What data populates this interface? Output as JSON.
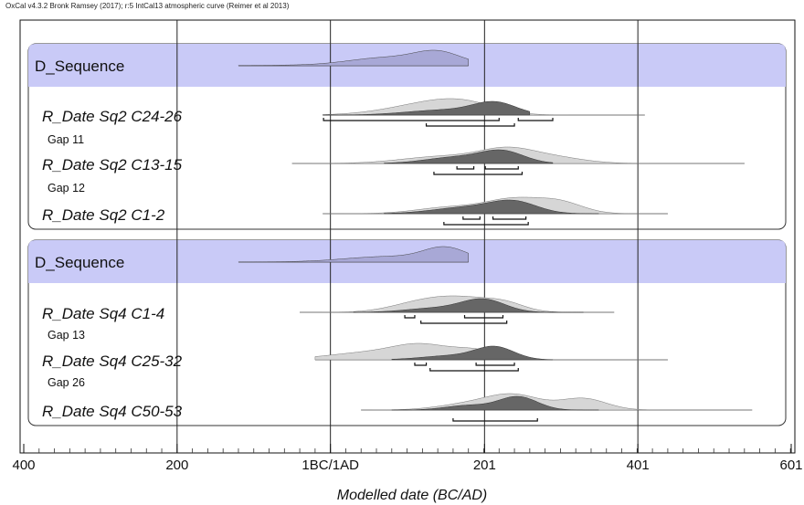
{
  "chart_data": {
    "type": "area",
    "credit": "OxCal v4.3.2 Bronk Ramsey (2017); r:5 IntCal13 atmospheric curve (Reimer et al 2013)",
    "xlabel": "Modelled date (BC/AD)",
    "xlim": [
      -400,
      601
    ],
    "x_ticks": [
      {
        "value": -400,
        "label": "400"
      },
      {
        "value": -200,
        "label": "200"
      },
      {
        "value": 0,
        "label": "1BC/1AD"
      },
      {
        "value": 201,
        "label": "201"
      },
      {
        "value": 401,
        "label": "401"
      },
      {
        "value": 601,
        "label": "601"
      }
    ],
    "colors": {
      "sequence_band": "#c9caf7",
      "prior": "#d6d6d6",
      "posterior": "#666666",
      "sequence_curve": "#a8a8d6"
    },
    "groups": [
      {
        "label": "D_Sequence",
        "summary": {
          "range": [
            -120,
            180
          ],
          "peaks": [
            {
              "center": 140,
              "width": 30,
              "height": 1.0
            },
            {
              "center": 70,
              "width": 45,
              "height": 0.55
            },
            {
              "center": 120,
              "width": 120,
              "height": 0.15
            }
          ]
        },
        "items": [
          {
            "label": "R_Date Sq2 C24-26",
            "prior": {
              "range": [
                -10,
                410
              ],
              "peaks": [
                {
                  "center": 180,
                  "width": 40,
                  "height": 1.0
                },
                {
                  "center": 140,
                  "width": 45,
                  "height": 0.8
                },
                {
                  "center": 100,
                  "width": 50,
                  "height": 0.55
                }
              ]
            },
            "posterior": {
              "range": [
                -10,
                260
              ],
              "peaks": [
                {
                  "center": 215,
                  "width": 28,
                  "height": 1.0
                },
                {
                  "center": 150,
                  "width": 50,
                  "height": 0.45
                }
              ]
            },
            "hpd68": [
              [
                -9,
                220
              ],
              [
                245,
                290
              ]
            ],
            "hpd95": [
              [
                125,
                240
              ]
            ],
            "gap_after": "Gap 11"
          },
          {
            "label": "R_Date Sq2 C13-15",
            "prior": {
              "range": [
                -50,
                540
              ],
              "peaks": [
                {
                  "center": 230,
                  "width": 35,
                  "height": 1.0
                },
                {
                  "center": 150,
                  "width": 55,
                  "height": 0.6
                },
                {
                  "center": 290,
                  "width": 40,
                  "height": 0.5
                }
              ]
            },
            "posterior": {
              "range": [
                70,
                290
              ],
              "peaks": [
                {
                  "center": 225,
                  "width": 28,
                  "height": 1.0
                },
                {
                  "center": 165,
                  "width": 40,
                  "height": 0.55
                }
              ]
            },
            "hpd68": [
              [
                165,
                187
              ],
              [
                202,
                245
              ]
            ],
            "hpd95": [
              [
                135,
                250
              ]
            ],
            "gap_after": "Gap 12"
          },
          {
            "label": "R_Date Sq2 C1-2",
            "prior": {
              "range": [
                -10,
                440
              ],
              "peaks": [
                {
                  "center": 240,
                  "width": 35,
                  "height": 1.0
                },
                {
                  "center": 300,
                  "width": 30,
                  "height": 0.8
                },
                {
                  "center": 160,
                  "width": 45,
                  "height": 0.5
                }
              ]
            },
            "posterior": {
              "range": [
                70,
                350
              ],
              "peaks": [
                {
                  "center": 240,
                  "width": 30,
                  "height": 1.0
                },
                {
                  "center": 180,
                  "width": 45,
                  "height": 0.6
                }
              ]
            },
            "hpd68": [
              [
                173,
                195
              ],
              [
                212,
                255
              ]
            ],
            "hpd95": [
              [
                148,
                258
              ]
            ],
            "gap_after": null
          }
        ]
      },
      {
        "label": "D_Sequence",
        "summary": {
          "range": [
            -120,
            180
          ],
          "peaks": [
            {
              "center": 150,
              "width": 28,
              "height": 1.0
            },
            {
              "center": 70,
              "width": 50,
              "height": 0.3
            },
            {
              "center": 110,
              "width": 90,
              "height": 0.15
            }
          ]
        },
        "items": [
          {
            "label": "R_Date Sq4 C1-4",
            "prior": {
              "range": [
                -40,
                370
              ],
              "peaks": [
                {
                  "center": 180,
                  "width": 40,
                  "height": 1.0
                },
                {
                  "center": 120,
                  "width": 40,
                  "height": 0.8
                },
                {
                  "center": 230,
                  "width": 25,
                  "height": 0.5
                }
              ]
            },
            "posterior": {
              "range": [
                30,
                330
              ],
              "peaks": [
                {
                  "center": 200,
                  "width": 28,
                  "height": 1.0
                },
                {
                  "center": 140,
                  "width": 40,
                  "height": 0.35
                }
              ]
            },
            "hpd68": [
              [
                97,
                110
              ],
              [
                175,
                225
              ]
            ],
            "hpd95": [
              [
                118,
                230
              ]
            ],
            "gap_after": "Gap 13"
          },
          {
            "label": "R_Date Sq4 C25-32",
            "prior": {
              "range": [
                -20,
                440
              ],
              "peaks": [
                {
                  "center": 120,
                  "width": 35,
                  "height": 1.0
                },
                {
                  "center": 60,
                  "width": 60,
                  "height": 0.7
                },
                {
                  "center": 190,
                  "width": 30,
                  "height": 0.8
                }
              ]
            },
            "posterior": {
              "range": [
                80,
                290
              ],
              "peaks": [
                {
                  "center": 215,
                  "width": 25,
                  "height": 1.0
                },
                {
                  "center": 160,
                  "width": 40,
                  "height": 0.35
                }
              ]
            },
            "hpd68": [
              [
                110,
                125
              ],
              [
                190,
                240
              ]
            ],
            "hpd95": [
              [
                130,
                245
              ]
            ],
            "gap_after": "Gap 26"
          },
          {
            "label": "R_Date Sq4 C50-53",
            "prior": {
              "range": [
                40,
                550
              ],
              "peaks": [
                {
                  "center": 240,
                  "width": 35,
                  "height": 1.0
                },
                {
                  "center": 330,
                  "width": 30,
                  "height": 0.8
                },
                {
                  "center": 180,
                  "width": 40,
                  "height": 0.4
                }
              ]
            },
            "posterior": {
              "range": [
                80,
                350
              ],
              "peaks": [
                {
                  "center": 245,
                  "width": 25,
                  "height": 1.0
                },
                {
                  "center": 180,
                  "width": 30,
                  "height": 0.35
                }
              ]
            },
            "hpd68": [
              [
                -1,
                -1
              ]
            ],
            "hpd95": [
              [
                160,
                270
              ]
            ],
            "gap_after": null
          }
        ]
      }
    ]
  }
}
